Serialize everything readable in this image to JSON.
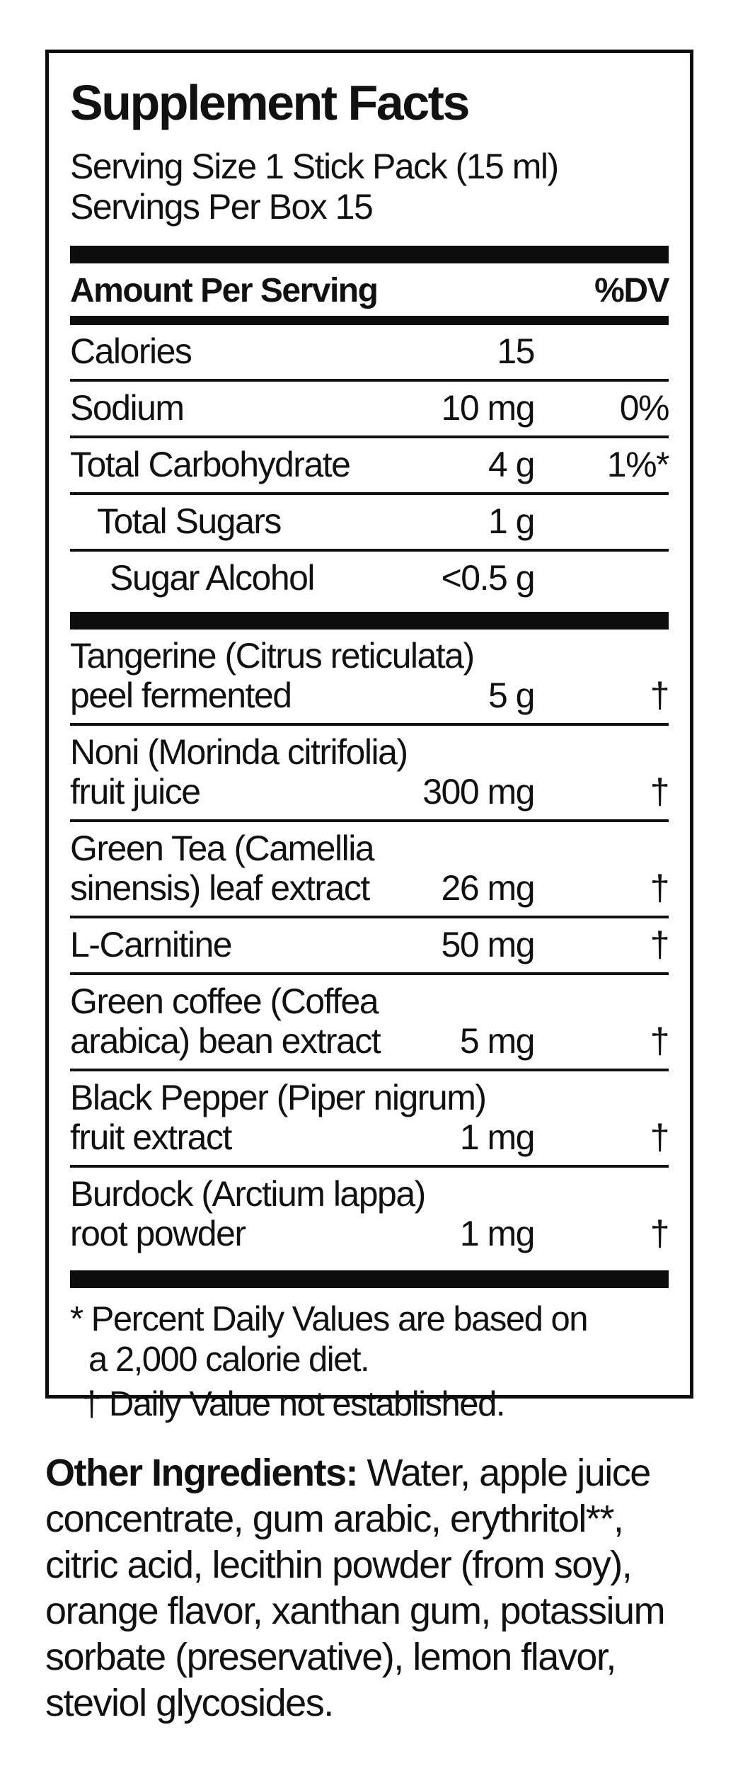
{
  "colors": {
    "background": "#ffffff",
    "text": "#111111",
    "bars": "#0d0d0d"
  },
  "panel": {
    "title": "Supplement Facts",
    "serving_size": "Serving Size 1 Stick Pack (15 ml)",
    "servings_per_box": "Servings Per Box 15",
    "columns": {
      "amount": "Amount Per Serving",
      "dv": "%DV"
    },
    "nutrients": [
      {
        "name": "Calories",
        "amount": "15",
        "dv": ""
      },
      {
        "name": "Sodium",
        "amount": "10 mg",
        "dv": "0%"
      },
      {
        "name": "Total Carbohydrate",
        "amount": "4 g",
        "dv": "1%*"
      },
      {
        "name": "Total Sugars",
        "amount": "1 g",
        "dv": ""
      },
      {
        "name": "Sugar Alcohol",
        "amount": "<0.5 g",
        "dv": ""
      }
    ],
    "botanicals": [
      {
        "line1": "Tangerine (Citrus reticulata)",
        "line2": "peel fermented",
        "amount": "5 g",
        "dv": "†"
      },
      {
        "line1": "Noni (Morinda citrifolia)",
        "line2": "fruit juice",
        "amount": "300 mg",
        "dv": "†"
      },
      {
        "line1": "Green Tea (Camellia",
        "line2": "sinensis) leaf extract",
        "amount": "26 mg",
        "dv": "†"
      },
      {
        "line1": "L-Carnitine",
        "amount": "50 mg",
        "dv": "†"
      },
      {
        "line1": "Green coffee (Coffea",
        "line2": "arabica) bean extract",
        "amount": "5 mg",
        "dv": "†"
      },
      {
        "line1": "Black Pepper (Piper nigrum)",
        "line2": "fruit extract",
        "amount": "1 mg",
        "dv": "†"
      },
      {
        "line1": "Burdock (Arctium lappa)",
        "line2": "root powder",
        "amount": "1 mg",
        "dv": "†"
      }
    ],
    "footnotes": {
      "percent_dv_line1": "* Percent Daily Values are based on",
      "percent_dv_line2": "a 2,000 calorie diet.",
      "dagger_note": "† Daily Value not established."
    }
  },
  "other_ingredients": {
    "label": "Other Ingredients:",
    "line1_rest": " Water, apple juice",
    "lines": [
      "concentrate, gum arabic, erythritol**,",
      "citric acid, lecithin powder (from soy),",
      "orange flavor, xanthan gum, potassium",
      "sorbate (preservative), lemon flavor,",
      "steviol glycosides."
    ]
  }
}
